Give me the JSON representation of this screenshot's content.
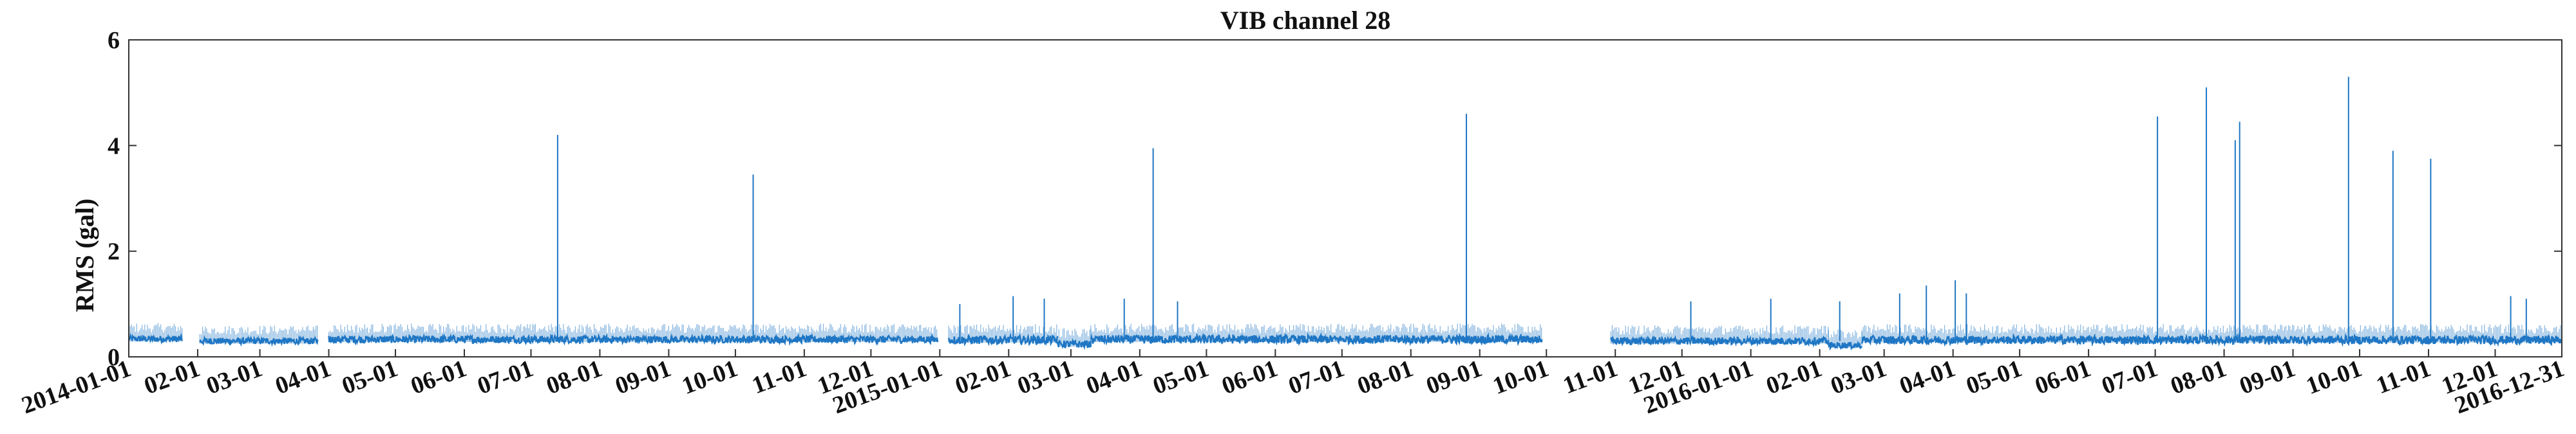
{
  "chart_data": {
    "type": "line",
    "title": "VIB channel 28",
    "xlabel": "",
    "ylabel": "RMS (gal)",
    "x_range": [
      "2014-01-01",
      "2016-12-31"
    ],
    "ylim": [
      0,
      6
    ],
    "yticks": [
      0,
      2,
      4,
      6
    ],
    "xtick_dates": [
      "2014-01-01",
      "2014-02-01",
      "2014-03-01",
      "2014-04-01",
      "2014-05-01",
      "2014-06-01",
      "2014-07-01",
      "2014-08-01",
      "2014-09-01",
      "2014-10-01",
      "2014-11-01",
      "2014-12-01",
      "2015-01-01",
      "2015-02-01",
      "2015-03-01",
      "2015-04-01",
      "2015-05-01",
      "2015-06-01",
      "2015-07-01",
      "2015-08-01",
      "2015-09-01",
      "2015-10-01",
      "2015-11-01",
      "2015-12-01",
      "2016-01-01",
      "2016-02-01",
      "2016-03-01",
      "2016-04-01",
      "2016-05-01",
      "2016-06-01",
      "2016-07-01",
      "2016-08-01",
      "2016-09-01",
      "2016-10-01",
      "2016-11-01",
      "2016-12-01",
      "2016-12-31"
    ],
    "xtick_labels": [
      "2014-01-01",
      "02-01",
      "03-01",
      "04-01",
      "05-01",
      "06-01",
      "07-01",
      "08-01",
      "09-01",
      "10-01",
      "11-01",
      "12-01",
      "2015-01-01",
      "02-01",
      "03-01",
      "04-01",
      "05-01",
      "06-01",
      "07-01",
      "08-01",
      "09-01",
      "10-01",
      "11-01",
      "12-01",
      "2016-01-01",
      "02-01",
      "03-01",
      "04-01",
      "05-01",
      "06-01",
      "07-01",
      "08-01",
      "09-01",
      "10-01",
      "11-01",
      "12-01",
      "2016-12-31"
    ],
    "grid": false,
    "color": "#1f77c4",
    "baseline_segments": [
      {
        "start": "2014-01-01",
        "end": "2014-01-25",
        "level": 0.34,
        "noise": 0.06
      },
      {
        "start": "2014-02-02",
        "end": "2014-03-27",
        "level": 0.3,
        "noise": 0.06
      },
      {
        "start": "2014-04-01",
        "end": "2014-12-31",
        "level": 0.33,
        "noise": 0.07
      },
      {
        "start": "2015-01-05",
        "end": "2015-02-23",
        "level": 0.32,
        "noise": 0.08
      },
      {
        "start": "2015-02-23",
        "end": "2015-03-10",
        "level": 0.24,
        "noise": 0.07
      },
      {
        "start": "2015-03-10",
        "end": "2015-09-29",
        "level": 0.33,
        "noise": 0.08
      },
      {
        "start": "2015-10-30",
        "end": "2016-02-05",
        "level": 0.3,
        "noise": 0.07
      },
      {
        "start": "2016-02-05",
        "end": "2016-02-20",
        "level": 0.22,
        "noise": 0.06
      },
      {
        "start": "2016-02-20",
        "end": "2016-12-31",
        "level": 0.32,
        "noise": 0.08
      }
    ],
    "spikes": [
      {
        "x": "2014-07-13",
        "y": 4.2
      },
      {
        "x": "2014-10-09",
        "y": 3.45
      },
      {
        "x": "2015-04-07",
        "y": 3.95
      },
      {
        "x": "2015-08-26",
        "y": 4.6
      },
      {
        "x": "2016-07-02",
        "y": 4.55
      },
      {
        "x": "2016-07-24",
        "y": 5.1
      },
      {
        "x": "2016-08-06",
        "y": 4.1
      },
      {
        "x": "2016-08-08",
        "y": 4.45
      },
      {
        "x": "2016-09-26",
        "y": 5.3
      },
      {
        "x": "2016-10-16",
        "y": 3.9
      },
      {
        "x": "2016-11-02",
        "y": 3.75
      },
      {
        "x": "2015-01-10",
        "y": 1.0
      },
      {
        "x": "2015-02-03",
        "y": 1.15
      },
      {
        "x": "2015-02-17",
        "y": 1.1
      },
      {
        "x": "2015-03-25",
        "y": 1.1
      },
      {
        "x": "2015-04-18",
        "y": 1.05
      },
      {
        "x": "2015-12-05",
        "y": 1.05
      },
      {
        "x": "2016-01-10",
        "y": 1.1
      },
      {
        "x": "2016-02-10",
        "y": 1.05
      },
      {
        "x": "2016-03-08",
        "y": 1.2
      },
      {
        "x": "2016-03-20",
        "y": 1.35
      },
      {
        "x": "2016-04-02",
        "y": 1.45
      },
      {
        "x": "2016-04-07",
        "y": 1.2
      },
      {
        "x": "2016-12-08",
        "y": 1.15
      },
      {
        "x": "2016-12-15",
        "y": 1.1
      }
    ]
  }
}
